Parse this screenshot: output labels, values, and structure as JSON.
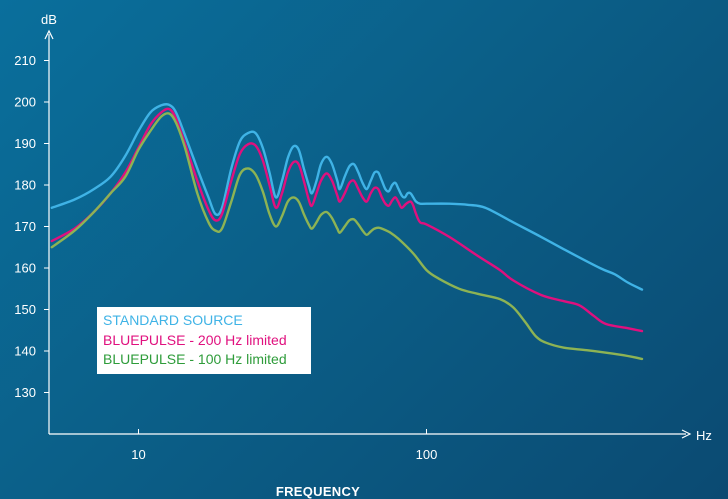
{
  "chart_data": {
    "type": "line",
    "title": "",
    "xlabel": "FREQUENCY",
    "x_unit": "Hz",
    "ylabel": "dB",
    "xscale": "log",
    "xlim": [
      5,
      650
    ],
    "ylim": [
      120,
      218
    ],
    "x_ticks": [
      10,
      100
    ],
    "x_tick_labels": [
      "10",
      "100"
    ],
    "y_ticks": [
      130,
      140,
      150,
      160,
      170,
      180,
      190,
      200,
      210
    ],
    "y_tick_labels": [
      "130",
      "140",
      "150",
      "160",
      "170",
      "180",
      "190",
      "200",
      "210"
    ],
    "grid": false,
    "legend_position": "left",
    "series": [
      {
        "name": "STANDARD SOURCE",
        "color": "#3fb3e6",
        "points": [
          [
            5,
            174.5
          ],
          [
            6,
            176.5
          ],
          [
            7,
            179
          ],
          [
            8,
            182
          ],
          [
            9,
            187
          ],
          [
            10,
            193
          ],
          [
            11,
            197.5
          ],
          [
            12,
            199.2
          ],
          [
            12.8,
            199.3
          ],
          [
            13.5,
            197.5
          ],
          [
            14.5,
            192
          ],
          [
            16,
            184
          ],
          [
            17.5,
            177
          ],
          [
            18.5,
            173
          ],
          [
            19.5,
            174.5
          ],
          [
            21,
            184
          ],
          [
            22.5,
            190.5
          ],
          [
            24,
            192.5
          ],
          [
            25.5,
            192.5
          ],
          [
            27,
            189
          ],
          [
            28.5,
            183
          ],
          [
            30,
            177
          ],
          [
            31.5,
            181
          ],
          [
            33,
            186.5
          ],
          [
            34.5,
            189.3
          ],
          [
            36,
            188.5
          ],
          [
            37.5,
            184
          ],
          [
            39,
            180
          ],
          [
            40,
            178
          ],
          [
            41.5,
            181
          ],
          [
            43,
            185
          ],
          [
            45,
            186.8
          ],
          [
            47,
            185
          ],
          [
            49,
            181
          ],
          [
            50,
            179
          ],
          [
            52,
            182
          ],
          [
            54,
            184.5
          ],
          [
            56,
            185
          ],
          [
            58,
            183
          ],
          [
            60,
            180.5
          ],
          [
            62,
            179
          ],
          [
            64,
            181
          ],
          [
            66,
            183
          ],
          [
            68,
            183
          ],
          [
            70,
            181
          ],
          [
            72,
            179
          ],
          [
            74,
            178.5
          ],
          [
            76,
            180
          ],
          [
            78,
            180.5
          ],
          [
            80,
            179
          ],
          [
            82,
            177.5
          ],
          [
            84,
            177
          ],
          [
            86,
            178
          ],
          [
            88,
            178
          ],
          [
            90,
            177
          ],
          [
            92,
            176
          ],
          [
            95,
            175.5
          ],
          [
            100,
            175.5
          ],
          [
            120,
            175.5
          ],
          [
            140,
            175.2
          ],
          [
            160,
            174.5
          ],
          [
            200,
            171
          ],
          [
            250,
            167.5
          ],
          [
            300,
            164.5
          ],
          [
            400,
            160
          ],
          [
            450,
            158.5
          ],
          [
            500,
            156.5
          ],
          [
            560,
            154.8
          ]
        ]
      },
      {
        "name": "BLUEPULSE - 200 Hz limited",
        "color": "#e0107e",
        "points": [
          [
            5,
            166.5
          ],
          [
            6,
            169.5
          ],
          [
            7,
            173.5
          ],
          [
            8,
            178
          ],
          [
            9,
            183
          ],
          [
            10,
            189
          ],
          [
            11,
            194.5
          ],
          [
            12,
            197.5
          ],
          [
            12.8,
            198.3
          ],
          [
            13.5,
            196
          ],
          [
            14.5,
            190
          ],
          [
            16,
            181
          ],
          [
            17.5,
            174
          ],
          [
            18.5,
            171.5
          ],
          [
            19.5,
            173
          ],
          [
            21,
            181
          ],
          [
            22.5,
            187.5
          ],
          [
            24,
            189.8
          ],
          [
            25.5,
            189.5
          ],
          [
            27,
            186
          ],
          [
            28.5,
            180
          ],
          [
            30,
            174.5
          ],
          [
            31.5,
            178
          ],
          [
            33,
            183
          ],
          [
            34.5,
            185.5
          ],
          [
            36,
            185
          ],
          [
            37.5,
            181
          ],
          [
            39,
            176.5
          ],
          [
            40,
            175
          ],
          [
            41.5,
            178
          ],
          [
            43,
            181
          ],
          [
            45,
            182.8
          ],
          [
            47,
            181
          ],
          [
            49,
            177.5
          ],
          [
            50,
            176
          ],
          [
            52,
            178
          ],
          [
            54,
            180.5
          ],
          [
            56,
            181
          ],
          [
            58,
            179
          ],
          [
            60,
            177
          ],
          [
            62,
            176
          ],
          [
            64,
            178
          ],
          [
            66,
            179.3
          ],
          [
            68,
            179
          ],
          [
            70,
            177
          ],
          [
            72,
            175.5
          ],
          [
            74,
            175
          ],
          [
            76,
            176.3
          ],
          [
            78,
            177
          ],
          [
            80,
            175.8
          ],
          [
            82,
            174.5
          ],
          [
            85,
            175.5
          ],
          [
            88,
            176
          ],
          [
            90,
            175
          ],
          [
            92,
            173
          ],
          [
            95,
            171
          ],
          [
            100,
            170.5
          ],
          [
            120,
            167.5
          ],
          [
            150,
            163
          ],
          [
            180,
            159.5
          ],
          [
            200,
            157
          ],
          [
            250,
            153.5
          ],
          [
            300,
            152
          ],
          [
            340,
            151
          ],
          [
            380,
            148.5
          ],
          [
            420,
            146.5
          ],
          [
            500,
            145.5
          ],
          [
            560,
            144.8
          ]
        ]
      },
      {
        "name": "BLUEPULSE - 100 Hz limited",
        "color": "#8db354",
        "points": [
          [
            5,
            165
          ],
          [
            6,
            169
          ],
          [
            7,
            173.5
          ],
          [
            8,
            178
          ],
          [
            9,
            182
          ],
          [
            10,
            188.5
          ],
          [
            11,
            193
          ],
          [
            12,
            196.5
          ],
          [
            12.8,
            197.2
          ],
          [
            13.5,
            195
          ],
          [
            14.5,
            189
          ],
          [
            16,
            178
          ],
          [
            17.5,
            171
          ],
          [
            18.5,
            169
          ],
          [
            19.5,
            169.5
          ],
          [
            21,
            176
          ],
          [
            22.5,
            182.5
          ],
          [
            24,
            184
          ],
          [
            25.5,
            182.5
          ],
          [
            27,
            178.5
          ],
          [
            28.5,
            173
          ],
          [
            30,
            170
          ],
          [
            31.5,
            172.5
          ],
          [
            33,
            176
          ],
          [
            34.5,
            177
          ],
          [
            36,
            176
          ],
          [
            37.5,
            173
          ],
          [
            39,
            170.5
          ],
          [
            40,
            169.5
          ],
          [
            41.5,
            171
          ],
          [
            43,
            172.8
          ],
          [
            45,
            173.5
          ],
          [
            47,
            172
          ],
          [
            49,
            169.5
          ],
          [
            50,
            168.5
          ],
          [
            52,
            170
          ],
          [
            54,
            171.5
          ],
          [
            56,
            171.7
          ],
          [
            58,
            170.5
          ],
          [
            60,
            169
          ],
          [
            62,
            168
          ],
          [
            64,
            168.8
          ],
          [
            66,
            169.5
          ],
          [
            68,
            169.7
          ],
          [
            70,
            169.5
          ],
          [
            75,
            168.5
          ],
          [
            80,
            167
          ],
          [
            90,
            163.5
          ],
          [
            100,
            159.5
          ],
          [
            110,
            157.5
          ],
          [
            130,
            155
          ],
          [
            150,
            153.8
          ],
          [
            180,
            152.5
          ],
          [
            200,
            150.5
          ],
          [
            220,
            147
          ],
          [
            240,
            143.5
          ],
          [
            260,
            142
          ],
          [
            300,
            140.8
          ],
          [
            360,
            140.2
          ],
          [
            420,
            139.6
          ],
          [
            500,
            138.8
          ],
          [
            560,
            138.1
          ]
        ]
      }
    ]
  }
}
